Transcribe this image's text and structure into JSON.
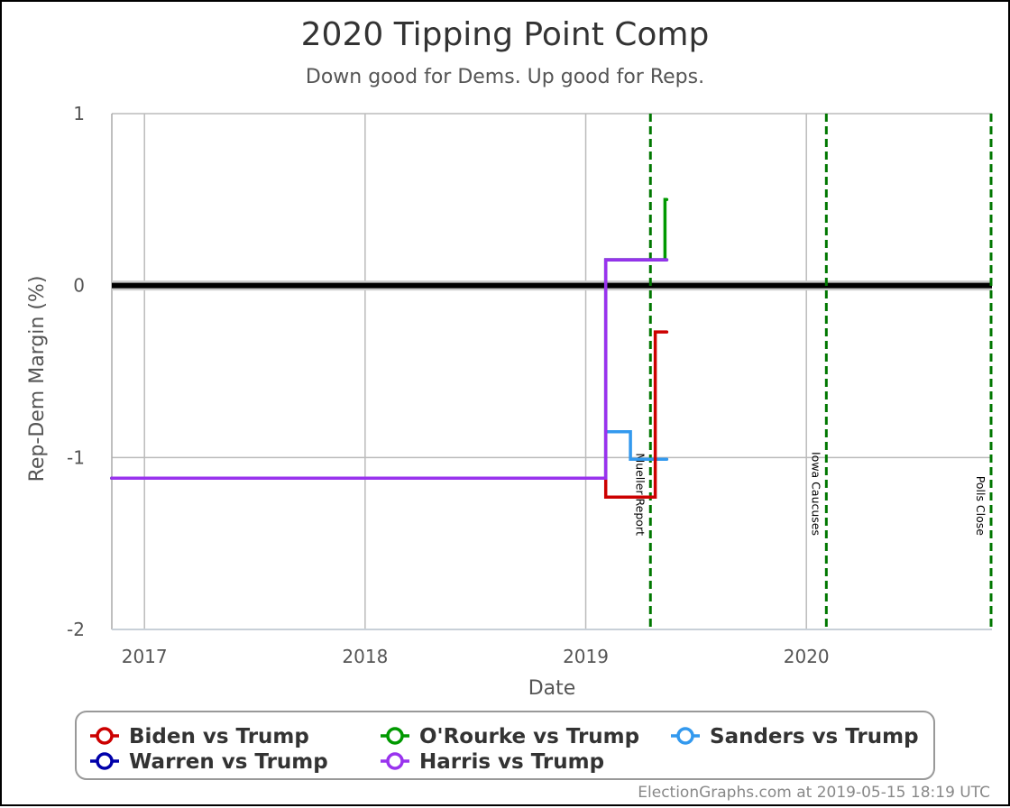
{
  "footer": {
    "credit": "ElectionGraphs.com at 2019-05-15 18:19 UTC"
  },
  "colors": {
    "biden": "#cc0000",
    "orourke": "#009900",
    "sanders": "#3399ee",
    "warren": "#0000aa",
    "harris": "#9933ee",
    "event_line": "#007700",
    "zero_line": "#000000",
    "grid": "#bbbbbb"
  },
  "chart_data": {
    "type": "line",
    "title": "2020 Tipping Point Comp",
    "subtitle": "Down good for Dems. Up good for Reps.",
    "xlabel": "Date",
    "ylabel": "Rep-Dem Margin (%)",
    "xlim": [
      "2016-11-08",
      "2020-11-03"
    ],
    "ylim": [
      -2,
      1
    ],
    "x_ticks": [
      {
        "date": "2017-01-01",
        "label": "2017"
      },
      {
        "date": "2018-01-01",
        "label": "2018"
      },
      {
        "date": "2019-01-01",
        "label": "2019"
      },
      {
        "date": "2020-01-01",
        "label": "2020"
      }
    ],
    "y_ticks": [
      {
        "value": 1,
        "label": "1"
      },
      {
        "value": 0,
        "label": "0"
      },
      {
        "value": -1,
        "label": "-1"
      },
      {
        "value": -2,
        "label": "-2"
      }
    ],
    "grid": true,
    "step": true,
    "events": [
      {
        "date": "2019-04-18",
        "label": "Mueller Report"
      },
      {
        "date": "2020-02-03",
        "label": "Iowa Caucuses"
      },
      {
        "date": "2020-11-03",
        "label": "Polls Close"
      }
    ],
    "series": [
      {
        "name": "Biden vs Trump",
        "color_key": "biden",
        "points": [
          {
            "x": "2016-11-08",
            "y": -1.12
          },
          {
            "x": "2019-02-03",
            "y": -1.12
          },
          {
            "x": "2019-02-03",
            "y": -1.23
          },
          {
            "x": "2019-04-26",
            "y": -1.23
          },
          {
            "x": "2019-04-26",
            "y": -0.27
          },
          {
            "x": "2019-05-15",
            "y": -0.27
          }
        ]
      },
      {
        "name": "O'Rourke vs Trump",
        "color_key": "orourke",
        "points": [
          {
            "x": "2016-11-08",
            "y": -1.12
          },
          {
            "x": "2019-02-03",
            "y": -1.12
          },
          {
            "x": "2019-02-03",
            "y": 0.15
          },
          {
            "x": "2019-05-12",
            "y": 0.15
          },
          {
            "x": "2019-05-12",
            "y": 0.5
          },
          {
            "x": "2019-05-15",
            "y": 0.5
          }
        ]
      },
      {
        "name": "Sanders vs Trump",
        "color_key": "sanders",
        "points": [
          {
            "x": "2016-11-08",
            "y": -1.12
          },
          {
            "x": "2019-02-03",
            "y": -1.12
          },
          {
            "x": "2019-02-03",
            "y": -0.85
          },
          {
            "x": "2019-03-16",
            "y": -0.85
          },
          {
            "x": "2019-03-16",
            "y": -1.01
          },
          {
            "x": "2019-05-15",
            "y": -1.01
          }
        ]
      },
      {
        "name": "Warren vs Trump",
        "color_key": "warren",
        "points": [
          {
            "x": "2016-11-08",
            "y": -1.12
          },
          {
            "x": "2019-02-03",
            "y": -1.12
          },
          {
            "x": "2019-02-03",
            "y": 0.15
          },
          {
            "x": "2019-05-15",
            "y": 0.15
          }
        ]
      },
      {
        "name": "Harris vs Trump",
        "color_key": "harris",
        "points": [
          {
            "x": "2016-11-08",
            "y": -1.12
          },
          {
            "x": "2019-02-03",
            "y": -1.12
          },
          {
            "x": "2019-02-03",
            "y": 0.15
          },
          {
            "x": "2019-05-15",
            "y": 0.15
          }
        ]
      }
    ],
    "legend": {
      "placement": "bottom",
      "entries": [
        {
          "label": "Biden vs Trump",
          "color_key": "biden"
        },
        {
          "label": "O'Rourke vs Trump",
          "color_key": "orourke"
        },
        {
          "label": "Sanders vs Trump",
          "color_key": "sanders"
        },
        {
          "label": "Warren vs Trump",
          "color_key": "warren"
        },
        {
          "label": "Harris vs Trump",
          "color_key": "harris"
        }
      ]
    }
  }
}
